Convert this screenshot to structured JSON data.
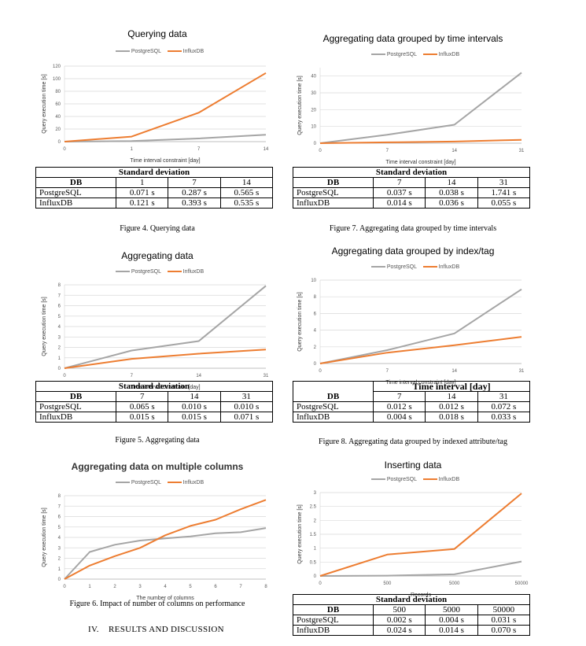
{
  "colors": {
    "postgres": "#a5a5a5",
    "influx": "#ed7d31",
    "grid": "#d9d9d9",
    "axis": "#bfbfbf"
  },
  "legend": {
    "postgres": "PostgreSQL",
    "influx": "InfluxDB"
  },
  "panels": [
    {
      "id": "fig4",
      "title": "Querying data",
      "chart_data": {
        "type": "line",
        "title": "Querying data",
        "x": [
          "0",
          "1",
          "7",
          "14"
        ],
        "series": [
          {
            "name": "PostgreSQL",
            "values": [
              0,
              1,
              5,
              11
            ]
          },
          {
            "name": "InfluxDB",
            "values": [
              0,
              8,
              46,
              109
            ]
          }
        ],
        "ylabel": "Query execution time [s]",
        "xlabel": "Time interval constraint [day]",
        "ylim": [
          0,
          120
        ],
        "yticks": [
          "0",
          "20",
          "40",
          "60",
          "80",
          "100",
          "120"
        ]
      },
      "table": {
        "title": "Standard deviation",
        "cols": [
          "DB",
          "1",
          "7",
          "14"
        ],
        "rows": [
          [
            "PostgreSQL",
            "0.071 s",
            "0.287 s",
            "0.565 s"
          ],
          [
            "InfluxDB",
            "0.121 s",
            "0.393 s",
            "0.535 s"
          ]
        ]
      },
      "caption": "Figure 4. Querying data"
    },
    {
      "id": "fig7",
      "title": "Aggregating data grouped by time intervals",
      "chart_data": {
        "type": "line",
        "title": "Aggregating data grouped by time intervals",
        "x": [
          "0",
          "7",
          "14",
          "31"
        ],
        "series": [
          {
            "name": "PostgreSQL",
            "values": [
              0,
              5,
              11,
              42
            ]
          },
          {
            "name": "InfluxDB",
            "values": [
              0,
              0.5,
              1,
              2
            ]
          }
        ],
        "ylabel": "Query execution time [s]",
        "xlabel": "Time interval constraint [day]",
        "ylim": [
          0,
          45
        ],
        "yticks": [
          "0",
          "10",
          "20",
          "30",
          "40"
        ]
      },
      "table": {
        "title": "Standard deviation",
        "cols": [
          "DB",
          "7",
          "14",
          "31"
        ],
        "rows": [
          [
            "PostgreSQL",
            "0.037 s",
            "0.038 s",
            "1.741 s"
          ],
          [
            "InfluxDB",
            "0.014 s",
            "0.036 s",
            "0.055 s"
          ]
        ]
      },
      "caption": "Figure 7. Aggregating data grouped by time intervals"
    },
    {
      "id": "fig5",
      "title": "Aggregating data",
      "chart_data": {
        "type": "line",
        "title": "Aggregating data",
        "x": [
          "0",
          "7",
          "14",
          "31"
        ],
        "series": [
          {
            "name": "PostgreSQL",
            "values": [
              0,
              1.7,
              2.6,
              7.9
            ]
          },
          {
            "name": "InfluxDB",
            "values": [
              0,
              0.9,
              1.4,
              1.8
            ]
          }
        ],
        "ylabel": "Query execution time [s]",
        "xlabel": "Time interval constraint [day]",
        "ylim": [
          0,
          8
        ],
        "yticks": [
          "0",
          "1",
          "2",
          "3",
          "4",
          "5",
          "6",
          "7",
          "8"
        ]
      },
      "table": {
        "title": "Standard deviation",
        "cols": [
          "DB",
          "7",
          "14",
          "31"
        ],
        "rows": [
          [
            "PostgreSQL",
            "0.065 s",
            "0.010 s",
            "0.010 s"
          ],
          [
            "InfluxDB",
            "0.015 s",
            "0.015 s",
            "0.071 s"
          ]
        ]
      },
      "caption": "Figure 5. Aggregating data"
    },
    {
      "id": "fig8",
      "title": "Aggregating data grouped by index/tag",
      "chart_data": {
        "type": "line",
        "title": "Aggregating data grouped by index/tag",
        "x": [
          "0",
          "7",
          "14",
          "31"
        ],
        "series": [
          {
            "name": "PostgreSQL",
            "values": [
              0,
              1.6,
              3.6,
              8.9
            ]
          },
          {
            "name": "InfluxDB",
            "values": [
              0,
              1.3,
              2.2,
              3.2
            ]
          }
        ],
        "ylabel": "Query execution time [s]",
        "xlabel": "Time interval constraint [day]",
        "ylim": [
          0,
          10
        ],
        "yticks": [
          "0",
          "2",
          "4",
          "6",
          "8",
          "10"
        ]
      },
      "table": {
        "title": "Time interval [day]",
        "cols": [
          "DB",
          "7",
          "14",
          "31"
        ],
        "rows": [
          [
            "PostgreSQL",
            "0.012 s",
            "0.012 s",
            "0.072 s"
          ],
          [
            "InfluxDB",
            "0.004 s",
            "0.018 s",
            "0.033 s"
          ]
        ]
      },
      "caption": "Figure 8. Aggregating data grouped by indexed attribute/tag"
    },
    {
      "id": "fig6",
      "title": "Aggregating data on multiple columns",
      "chart_data": {
        "type": "line",
        "title": "Aggregating data on multiple columns",
        "x": [
          "0",
          "1",
          "2",
          "3",
          "4",
          "5",
          "6",
          "7",
          "8"
        ],
        "series": [
          {
            "name": "PostgreSQL",
            "values": [
              0,
              2.6,
              3.3,
              3.7,
              3.9,
              4.1,
              4.4,
              4.5,
              4.9
            ]
          },
          {
            "name": "InfluxDB",
            "values": [
              0,
              1.3,
              2.2,
              3.0,
              4.2,
              5.1,
              5.7,
              6.7,
              7.6
            ]
          }
        ],
        "ylabel": "Query execution time [s]",
        "xlabel": "The number of columns",
        "ylim": [
          0,
          8
        ],
        "yticks": [
          "0",
          "1",
          "2",
          "3",
          "4",
          "5",
          "6",
          "7",
          "8"
        ]
      },
      "table": null,
      "caption": "Figure 6. Impact of number of columns on performance"
    },
    {
      "id": "fig9",
      "title": "Inserting data",
      "chart_data": {
        "type": "line",
        "title": "Inserting data",
        "x": [
          "0",
          "500",
          "5000",
          "50000"
        ],
        "series": [
          {
            "name": "PostgreSQL",
            "values": [
              0,
              0.01,
              0.06,
              0.52
            ]
          },
          {
            "name": "InfluxDB",
            "values": [
              0,
              0.77,
              0.97,
              2.97
            ]
          }
        ],
        "ylabel": "Query execution time [s]",
        "xlabel": "Records",
        "ylim": [
          0,
          3
        ],
        "yticks": [
          "0",
          "0.5",
          "1",
          "1.5",
          "2",
          "2.5",
          "3"
        ]
      },
      "table": {
        "title": "Standard deviation",
        "cols": [
          "DB",
          "500",
          "5000",
          "50000"
        ],
        "rows": [
          [
            "PostgreSQL",
            "0.002 s",
            "0.004 s",
            "0.031 s"
          ],
          [
            "InfluxDB",
            "0.024 s",
            "0.014 s",
            "0.070 s"
          ]
        ]
      },
      "caption": null
    }
  ],
  "section_heading": "IV.    RESULTS AND DISCUSSION"
}
